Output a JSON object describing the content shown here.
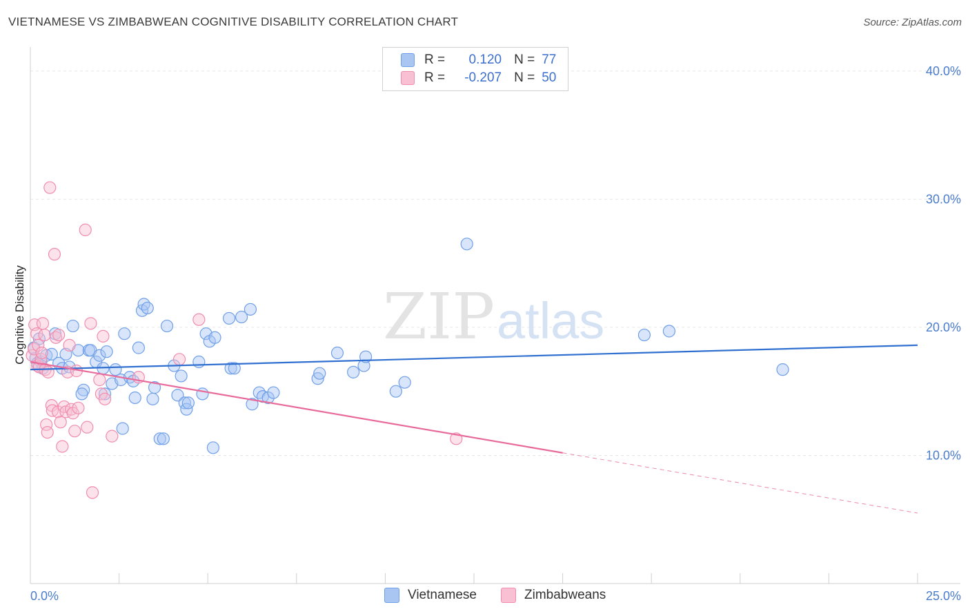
{
  "header": {
    "title": "VIETNAMESE VS ZIMBABWEAN COGNITIVE DISABILITY CORRELATION CHART",
    "source": "Source: ZipAtlas.com"
  },
  "watermark": {
    "zip": "ZIP",
    "atlas": "atlas"
  },
  "legend": {
    "rows": [
      {
        "r_label": "R =",
        "r_value": " 0.120",
        "n_label": "N =",
        "n_value": "77",
        "color": "#6f9fe8"
      },
      {
        "r_label": "R =",
        "r_value": "-0.207",
        "n_label": "N =",
        "n_value": "50",
        "color": "#f08cae"
      }
    ]
  },
  "chart_data": {
    "type": "scatter",
    "title": "VIETNAMESE VS ZIMBABWEAN COGNITIVE DISABILITY CORRELATION CHART",
    "xlabel": "",
    "ylabel": "Cognitive Disability",
    "xlim": [
      0,
      25
    ],
    "ylim": [
      0,
      41.5
    ],
    "x_tick_labels": [
      {
        "value": 0,
        "label": "0.0%"
      },
      {
        "value": 25,
        "label": "25.0%"
      }
    ],
    "y_tick_labels": [
      {
        "value": 10,
        "label": "10.0%"
      },
      {
        "value": 20,
        "label": "20.0%"
      },
      {
        "value": 30,
        "label": "30.0%"
      },
      {
        "value": 40,
        "label": "40.0%"
      }
    ],
    "x_minor_ticks": [
      0,
      2.5,
      5,
      7.5,
      10,
      12.5,
      15,
      17.5,
      20,
      22.5,
      25
    ],
    "series": [
      {
        "name": "Vietnamese",
        "color": "#6f9fe8",
        "fill": "#a9c6f3",
        "trend": {
          "x0": 0,
          "y0": 16.7,
          "x1": 25,
          "y1": 18.6
        },
        "points": [
          [
            0.1,
            18.4
          ],
          [
            0.15,
            17.6
          ],
          [
            0.2,
            17.2
          ],
          [
            0.25,
            19.1
          ],
          [
            0.3,
            17.3
          ],
          [
            0.35,
            16.8
          ],
          [
            0.45,
            17.8
          ],
          [
            0.6,
            17.9
          ],
          [
            0.7,
            19.5
          ],
          [
            0.8,
            17.2
          ],
          [
            0.9,
            16.8
          ],
          [
            1.0,
            17.9
          ],
          [
            1.1,
            16.9
          ],
          [
            1.2,
            20.1
          ],
          [
            1.35,
            18.2
          ],
          [
            1.5,
            15.1
          ],
          [
            1.45,
            14.8
          ],
          [
            1.65,
            18.2
          ],
          [
            1.7,
            18.2
          ],
          [
            1.85,
            17.3
          ],
          [
            1.95,
            17.8
          ],
          [
            2.05,
            16.8
          ],
          [
            2.1,
            14.8
          ],
          [
            2.15,
            18.1
          ],
          [
            2.3,
            15.6
          ],
          [
            2.4,
            16.7
          ],
          [
            2.55,
            15.9
          ],
          [
            2.6,
            12.1
          ],
          [
            2.65,
            19.5
          ],
          [
            2.8,
            16.1
          ],
          [
            2.9,
            15.8
          ],
          [
            2.95,
            14.5
          ],
          [
            3.05,
            18.4
          ],
          [
            3.15,
            21.3
          ],
          [
            3.2,
            21.8
          ],
          [
            3.3,
            21.5
          ],
          [
            3.45,
            14.4
          ],
          [
            3.5,
            15.3
          ],
          [
            3.65,
            11.3
          ],
          [
            3.75,
            11.3
          ],
          [
            3.85,
            20.1
          ],
          [
            4.05,
            17.0
          ],
          [
            4.15,
            14.7
          ],
          [
            4.25,
            16.2
          ],
          [
            4.35,
            14.1
          ],
          [
            4.4,
            13.6
          ],
          [
            4.45,
            14.1
          ],
          [
            4.75,
            17.3
          ],
          [
            4.85,
            14.8
          ],
          [
            4.95,
            19.5
          ],
          [
            5.05,
            18.9
          ],
          [
            5.15,
            10.6
          ],
          [
            5.2,
            19.2
          ],
          [
            5.6,
            20.7
          ],
          [
            5.65,
            16.8
          ],
          [
            5.75,
            16.8
          ],
          [
            5.95,
            20.8
          ],
          [
            6.2,
            21.4
          ],
          [
            6.25,
            14.0
          ],
          [
            6.45,
            14.9
          ],
          [
            6.55,
            14.6
          ],
          [
            6.7,
            14.5
          ],
          [
            6.85,
            14.9
          ],
          [
            8.1,
            16.0
          ],
          [
            8.15,
            16.4
          ],
          [
            8.65,
            18.0
          ],
          [
            9.1,
            16.5
          ],
          [
            9.4,
            17.0
          ],
          [
            9.45,
            17.7
          ],
          [
            10.3,
            15.0
          ],
          [
            10.55,
            15.7
          ],
          [
            12.3,
            26.5
          ],
          [
            17.3,
            19.4
          ],
          [
            18.0,
            19.7
          ],
          [
            21.2,
            16.7
          ]
        ]
      },
      {
        "name": "Zimbabweans",
        "color": "#f08cae",
        "fill": "#f8c0d2",
        "trend": {
          "x0": 0,
          "y0": 17.3,
          "x1": 15.0,
          "y1": 10.2,
          "dash_x1": 25,
          "dash_y1": 5.5
        },
        "points": [
          [
            0.05,
            17.8
          ],
          [
            0.1,
            18.3
          ],
          [
            0.12,
            20.2
          ],
          [
            0.18,
            19.5
          ],
          [
            0.2,
            17.0
          ],
          [
            0.22,
            18.6
          ],
          [
            0.25,
            16.9
          ],
          [
            0.3,
            17.5
          ],
          [
            0.32,
            18.0
          ],
          [
            0.35,
            20.3
          ],
          [
            0.4,
            19.4
          ],
          [
            0.42,
            16.7
          ],
          [
            0.45,
            12.4
          ],
          [
            0.48,
            11.8
          ],
          [
            0.5,
            16.5
          ],
          [
            0.55,
            30.9
          ],
          [
            0.6,
            13.9
          ],
          [
            0.62,
            13.5
          ],
          [
            0.68,
            25.7
          ],
          [
            0.72,
            19.2
          ],
          [
            0.78,
            13.4
          ],
          [
            0.8,
            19.4
          ],
          [
            0.85,
            12.6
          ],
          [
            0.9,
            10.7
          ],
          [
            0.95,
            13.8
          ],
          [
            1.0,
            13.4
          ],
          [
            1.05,
            16.5
          ],
          [
            1.1,
            18.6
          ],
          [
            1.15,
            13.6
          ],
          [
            1.2,
            13.3
          ],
          [
            1.25,
            11.9
          ],
          [
            1.3,
            16.6
          ],
          [
            1.35,
            13.7
          ],
          [
            1.55,
            27.6
          ],
          [
            1.6,
            12.2
          ],
          [
            1.7,
            20.3
          ],
          [
            1.75,
            7.1
          ],
          [
            1.95,
            15.9
          ],
          [
            2.0,
            14.8
          ],
          [
            2.05,
            19.3
          ],
          [
            2.1,
            14.4
          ],
          [
            2.3,
            11.5
          ],
          [
            3.05,
            16.1
          ],
          [
            4.2,
            17.5
          ],
          [
            4.75,
            20.6
          ],
          [
            12.0,
            11.3
          ]
        ]
      }
    ]
  },
  "bottom_legend": {
    "items": [
      {
        "label": "Vietnamese",
        "color": "#a9c6f3",
        "border": "#6f9fe8"
      },
      {
        "label": "Zimbabweans",
        "color": "#f8c0d2",
        "border": "#f08cae"
      }
    ]
  }
}
